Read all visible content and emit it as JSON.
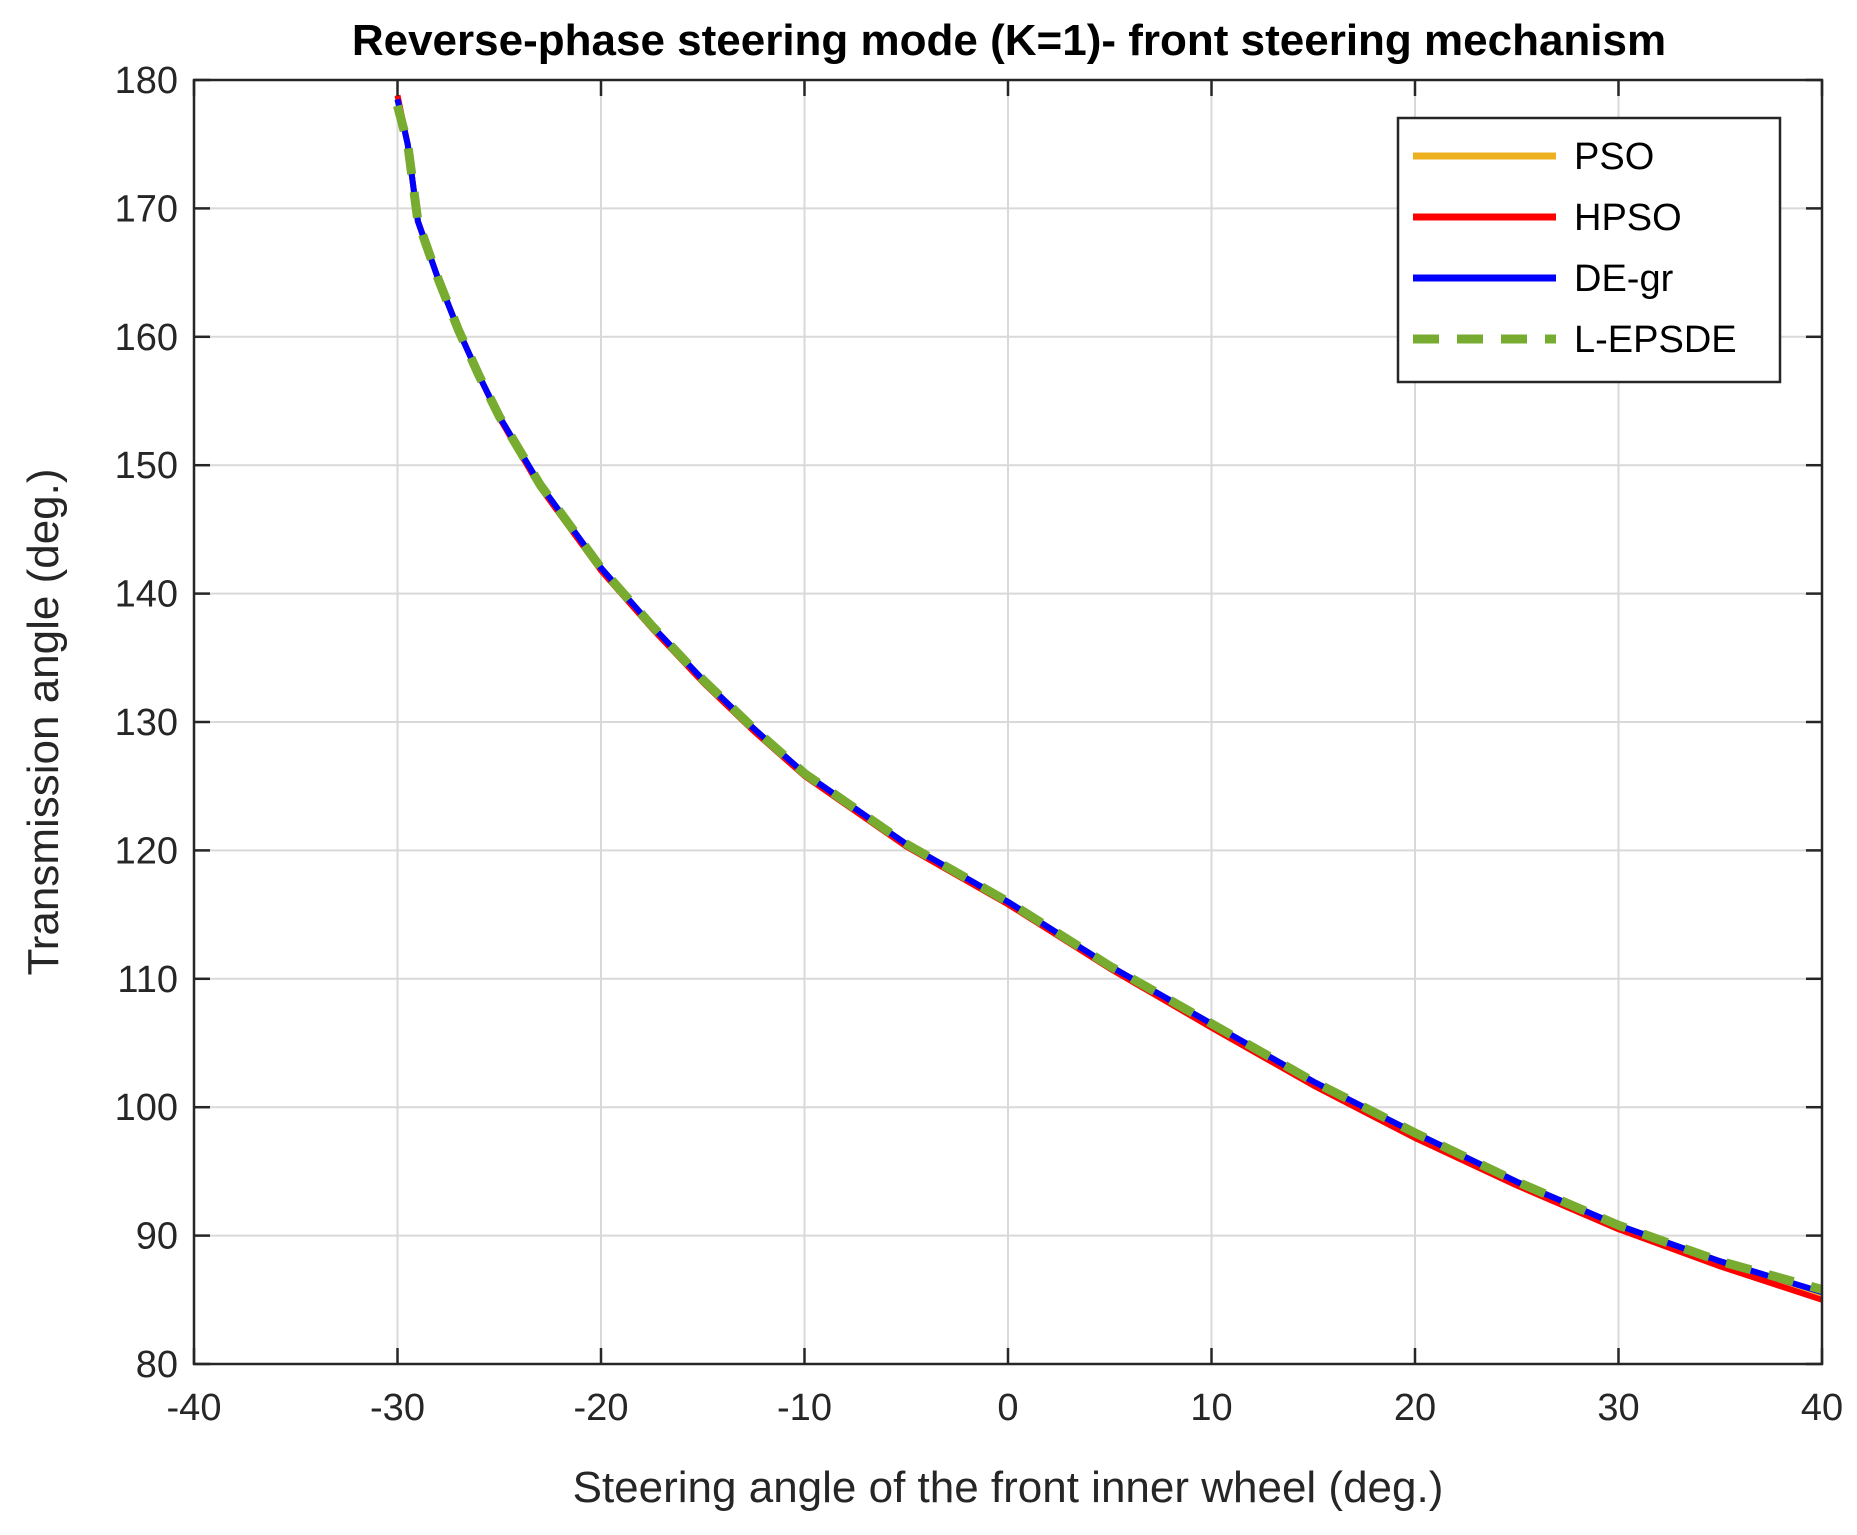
{
  "chart_data": {
    "type": "line",
    "title": "Reverse-phase steering mode (K=1)- front steering mechanism",
    "xlabel": "Steering angle of the front inner wheel (deg.)",
    "ylabel": "Transmission angle (deg.)",
    "xlim": [
      -40,
      40
    ],
    "ylim": [
      80,
      180
    ],
    "xticks": [
      -40,
      -30,
      -20,
      -10,
      0,
      10,
      20,
      30,
      40
    ],
    "yticks": [
      80,
      90,
      100,
      110,
      120,
      130,
      140,
      150,
      160,
      170,
      180
    ],
    "xtick_labels": [
      "-40",
      "-30",
      "-20",
      "-10",
      "0",
      "10",
      "20",
      "30",
      "40"
    ],
    "ytick_labels": [
      "80",
      "90",
      "100",
      "110",
      "120",
      "130",
      "140",
      "150",
      "160",
      "170",
      "180"
    ],
    "grid": true,
    "legend_position": "top-right",
    "x": [
      -30,
      -29.5,
      -29,
      -28,
      -27,
      -26,
      -25,
      -23,
      -20,
      -17.5,
      -15,
      -12.5,
      -10,
      -5,
      0,
      5,
      10,
      15,
      20,
      25,
      30,
      35,
      40
    ],
    "series": [
      {
        "name": "PSO",
        "color": "#EDB120",
        "style": "solid",
        "values": [
          178.5,
          175,
          169,
          164.5,
          160.5,
          157,
          153.8,
          148.5,
          142,
          137.5,
          133.3,
          129.5,
          126,
          120.5,
          116,
          111,
          106.5,
          102,
          98,
          94.2,
          90.8,
          88,
          85.5
        ]
      },
      {
        "name": "HPSO",
        "color": "#FF0000",
        "style": "solid",
        "values": [
          178.8,
          175,
          169,
          164.5,
          160.5,
          157,
          153.7,
          148.3,
          141.8,
          137.3,
          133.1,
          129.3,
          125.8,
          120.3,
          115.8,
          110.8,
          106.2,
          101.7,
          97.6,
          93.9,
          90.5,
          87.6,
          85
        ]
      },
      {
        "name": "DE-gr",
        "color": "#0000FF",
        "style": "solid",
        "values": [
          178.5,
          175,
          169,
          164.5,
          160.5,
          157,
          153.8,
          148.5,
          142,
          137.5,
          133.3,
          129.5,
          126,
          120.5,
          116,
          111,
          106.5,
          102,
          98,
          94.2,
          90.8,
          88,
          85.6
        ]
      },
      {
        "name": "L-EPSDE",
        "color": "#77AC30",
        "style": "dashed",
        "values": [
          178,
          175,
          169,
          164.5,
          160.5,
          157,
          153.8,
          148.5,
          142,
          137.5,
          133.3,
          129.5,
          126,
          120.5,
          116,
          111,
          106.5,
          102,
          98,
          94.2,
          90.8,
          88,
          85.8
        ]
      }
    ]
  }
}
